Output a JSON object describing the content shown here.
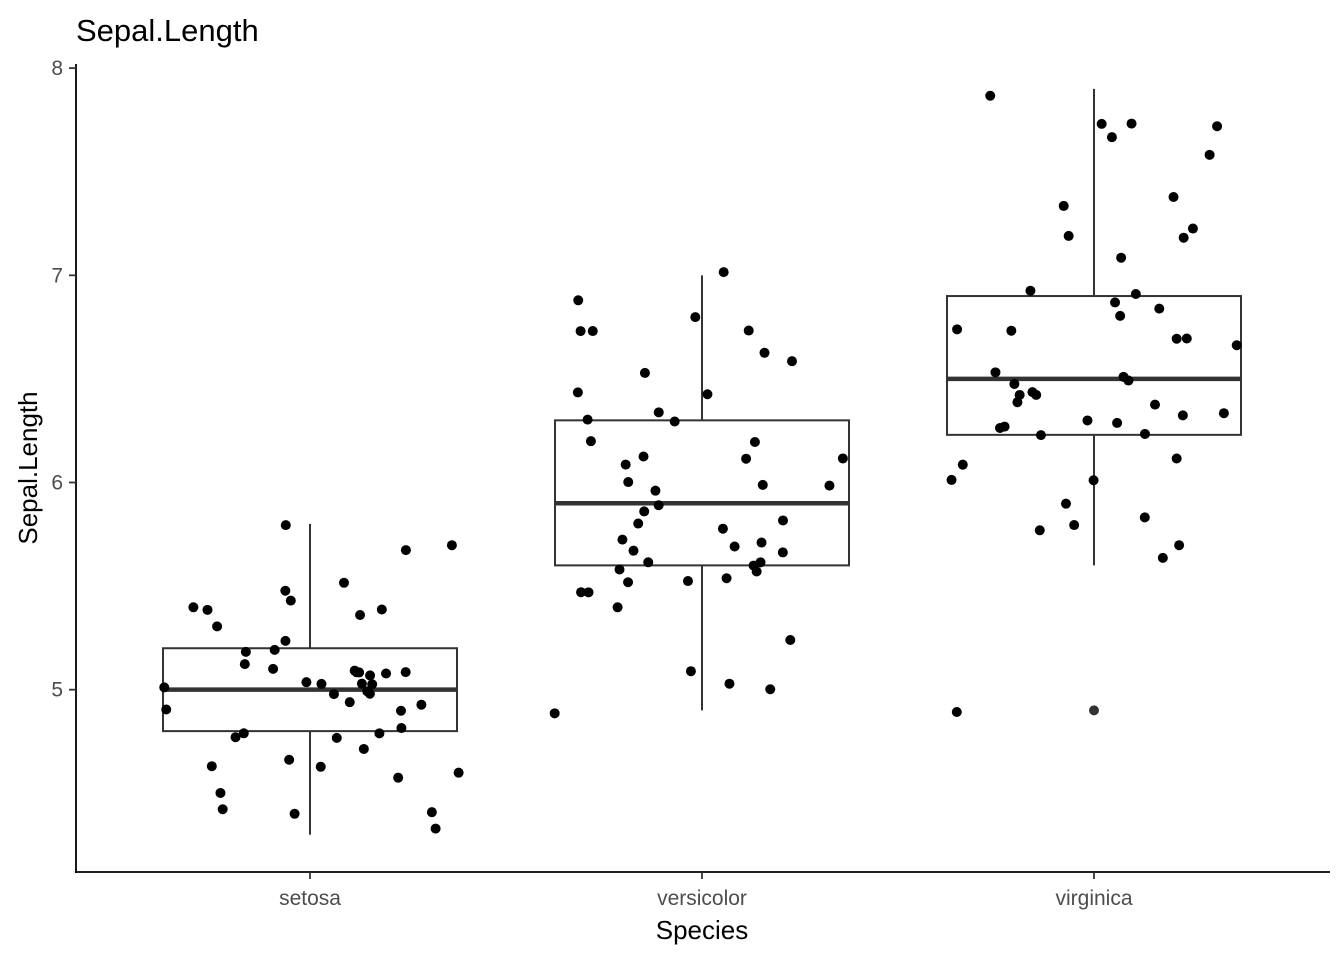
{
  "chart_data": {
    "type": "boxplot",
    "title": "Sepal.Length",
    "xlabel": "Species",
    "ylabel": "Sepal.Length",
    "categories": [
      "setosa",
      "versicolor",
      "virginica"
    ],
    "y_ticks": [
      5,
      6,
      7,
      8
    ],
    "ylim": [
      4.12,
      8.02
    ],
    "grid": false,
    "legend": "none",
    "boxes": [
      {
        "category": "setosa",
        "lower_whisker": 4.3,
        "q1": 4.8,
        "median": 5.0,
        "q3": 5.2,
        "upper_whisker": 5.8,
        "outliers": []
      },
      {
        "category": "versicolor",
        "lower_whisker": 4.9,
        "q1": 5.6,
        "median": 5.9,
        "q3": 6.3,
        "upper_whisker": 7.0,
        "outliers": []
      },
      {
        "category": "virginica",
        "lower_whisker": 5.6,
        "q1": 6.23,
        "median": 6.5,
        "q3": 6.9,
        "upper_whisker": 7.9,
        "outliers": [
          4.9
        ]
      }
    ],
    "points": [
      {
        "category": "setosa",
        "values": [
          5.1,
          4.9,
          4.7,
          4.6,
          5.0,
          5.4,
          4.6,
          5.0,
          4.4,
          4.9,
          5.4,
          4.8,
          4.8,
          4.3,
          5.8,
          5.7,
          5.4,
          5.1,
          5.7,
          5.1,
          5.4,
          5.1,
          4.6,
          5.1,
          4.8,
          5.0,
          5.0,
          5.2,
          5.2,
          4.7,
          4.8,
          5.4,
          5.2,
          5.5,
          4.9,
          5.0,
          5.5,
          4.9,
          4.4,
          5.1,
          5.0,
          4.5,
          4.4,
          5.0,
          5.1,
          4.8,
          5.1,
          4.6,
          5.3,
          5.0
        ]
      },
      {
        "category": "versicolor",
        "values": [
          7.0,
          6.4,
          6.9,
          5.5,
          6.5,
          5.7,
          6.3,
          4.9,
          6.6,
          5.2,
          5.0,
          5.9,
          6.0,
          6.1,
          5.6,
          6.7,
          5.6,
          5.8,
          6.2,
          5.6,
          5.9,
          6.1,
          6.3,
          6.1,
          6.4,
          6.6,
          6.8,
          6.7,
          6.0,
          5.7,
          5.5,
          5.5,
          5.8,
          6.0,
          5.4,
          6.0,
          6.7,
          6.3,
          5.6,
          5.5,
          5.5,
          6.1,
          5.8,
          5.0,
          5.6,
          5.7,
          5.7,
          6.2,
          5.1,
          5.7
        ]
      },
      {
        "category": "virginica",
        "values": [
          6.3,
          5.8,
          7.1,
          6.3,
          6.5,
          7.6,
          4.9,
          7.3,
          6.7,
          7.2,
          6.5,
          6.4,
          6.8,
          5.7,
          5.8,
          6.4,
          6.5,
          7.7,
          7.7,
          6.0,
          6.9,
          5.6,
          7.7,
          6.3,
          6.7,
          7.2,
          6.2,
          6.1,
          6.4,
          7.2,
          7.4,
          7.9,
          6.4,
          6.3,
          6.1,
          7.7,
          6.3,
          6.4,
          6.0,
          6.9,
          6.7,
          6.9,
          5.8,
          6.8,
          6.7,
          6.7,
          6.3,
          6.5,
          6.2,
          5.9
        ]
      }
    ]
  }
}
